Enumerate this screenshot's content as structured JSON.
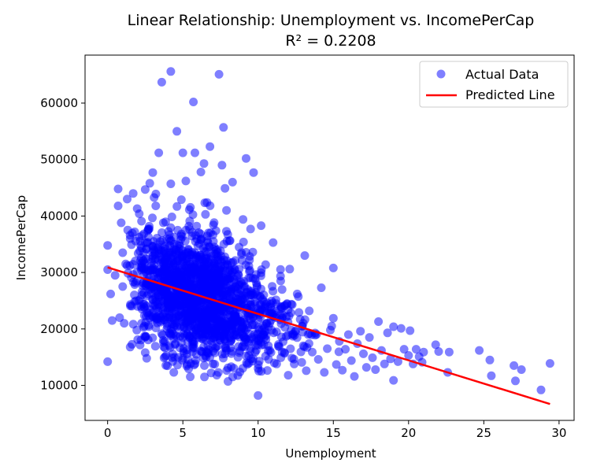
{
  "chart_data": {
    "type": "scatter",
    "title": "Linear Relationship: Unemployment vs. IncomePerCap",
    "subtitle": "R² = 0.2208",
    "xlabel": "Unemployment",
    "ylabel": "IncomePerCap",
    "xlim": [
      -1.5,
      31.0
    ],
    "ylim": [
      3800,
      68500
    ],
    "xticks": [
      0,
      5,
      10,
      15,
      20,
      25,
      30
    ],
    "yticks": [
      10000,
      20000,
      30000,
      40000,
      50000,
      60000
    ],
    "xtick_labels": [
      "0",
      "5",
      "10",
      "15",
      "20",
      "25",
      "30"
    ],
    "ytick_labels": [
      "10000",
      "20000",
      "30000",
      "40000",
      "50000",
      "60000"
    ],
    "grid": false,
    "legend_position": "top-right",
    "series": [
      {
        "name": "Actual Data",
        "kind": "scatter",
        "color": "#0000ff",
        "alpha": 0.5,
        "points": [
          [
            0.0,
            34800
          ],
          [
            0.0,
            30500
          ],
          [
            0.0,
            14200
          ],
          [
            0.2,
            26200
          ],
          [
            0.3,
            21500
          ],
          [
            0.5,
            29500
          ],
          [
            0.7,
            44800
          ],
          [
            0.7,
            41800
          ],
          [
            0.8,
            22000
          ],
          [
            0.9,
            38800
          ],
          [
            1.0,
            33500
          ],
          [
            1.0,
            27500
          ],
          [
            1.1,
            21000
          ],
          [
            1.2,
            31500
          ],
          [
            1.3,
            43000
          ],
          [
            1.5,
            16800
          ],
          [
            1.5,
            36000
          ],
          [
            1.7,
            44000
          ],
          [
            1.8,
            37200
          ],
          [
            1.9,
            25000
          ],
          [
            2.0,
            18100
          ],
          [
            2.1,
            40400
          ],
          [
            2.2,
            34800
          ],
          [
            2.4,
            30600
          ],
          [
            2.5,
            44700
          ],
          [
            2.5,
            15800
          ],
          [
            2.6,
            14800
          ],
          [
            2.7,
            37700
          ],
          [
            2.8,
            45800
          ],
          [
            3.0,
            22900
          ],
          [
            3.0,
            47700
          ],
          [
            3.2,
            41800
          ],
          [
            3.4,
            51200
          ],
          [
            3.5,
            28000
          ],
          [
            3.6,
            63700
          ],
          [
            3.7,
            38800
          ],
          [
            3.8,
            17800
          ],
          [
            3.9,
            15300
          ],
          [
            4.0,
            24400
          ],
          [
            4.1,
            36000
          ],
          [
            4.2,
            65600
          ],
          [
            4.2,
            45700
          ],
          [
            4.3,
            14900
          ],
          [
            4.4,
            12300
          ],
          [
            4.5,
            33500
          ],
          [
            4.6,
            55000
          ],
          [
            4.7,
            28800
          ],
          [
            4.8,
            20300
          ],
          [
            4.9,
            42900
          ],
          [
            5.0,
            51200
          ],
          [
            5.0,
            14800
          ],
          [
            5.2,
            46200
          ],
          [
            5.3,
            19000
          ],
          [
            5.4,
            38200
          ],
          [
            5.6,
            33600
          ],
          [
            5.7,
            60200
          ],
          [
            5.8,
            51200
          ],
          [
            5.9,
            15500
          ],
          [
            6.0,
            27400
          ],
          [
            6.2,
            47800
          ],
          [
            6.3,
            20800
          ],
          [
            6.4,
            49300
          ],
          [
            6.6,
            42400
          ],
          [
            6.8,
            52300
          ],
          [
            6.9,
            18400
          ],
          [
            7.0,
            13800
          ],
          [
            7.1,
            31100
          ],
          [
            7.2,
            37400
          ],
          [
            7.3,
            23800
          ],
          [
            7.4,
            65100
          ],
          [
            7.5,
            28200
          ],
          [
            7.6,
            49000
          ],
          [
            7.7,
            55700
          ],
          [
            7.8,
            44900
          ],
          [
            7.9,
            41000
          ],
          [
            8.0,
            10700
          ],
          [
            8.0,
            13100
          ],
          [
            8.0,
            21000
          ],
          [
            8.1,
            35600
          ],
          [
            8.2,
            26700
          ],
          [
            8.3,
            46000
          ],
          [
            8.5,
            28200
          ],
          [
            8.6,
            18900
          ],
          [
            8.7,
            16900
          ],
          [
            8.9,
            33500
          ],
          [
            9.0,
            39400
          ],
          [
            9.2,
            50200
          ],
          [
            9.3,
            27000
          ],
          [
            9.5,
            37700
          ],
          [
            9.5,
            16600
          ],
          [
            9.7,
            47700
          ],
          [
            9.8,
            28900
          ],
          [
            10.0,
            8200
          ],
          [
            10.0,
            13000
          ],
          [
            10.1,
            22500
          ],
          [
            10.2,
            38300
          ],
          [
            10.3,
            25200
          ],
          [
            10.5,
            31400
          ],
          [
            10.7,
            14600
          ],
          [
            10.9,
            19800
          ],
          [
            11.0,
            35300
          ],
          [
            11.2,
            22000
          ],
          [
            11.4,
            16900
          ],
          [
            11.5,
            28500
          ],
          [
            11.6,
            15900
          ],
          [
            11.8,
            24200
          ],
          [
            12.0,
            11800
          ],
          [
            12.1,
            30600
          ],
          [
            12.2,
            19800
          ],
          [
            12.4,
            13800
          ],
          [
            12.6,
            26200
          ],
          [
            12.8,
            21700
          ],
          [
            13.0,
            17000
          ],
          [
            13.1,
            33000
          ],
          [
            13.2,
            12600
          ],
          [
            13.4,
            23200
          ],
          [
            13.6,
            15900
          ],
          [
            13.8,
            18900
          ],
          [
            14.0,
            14600
          ],
          [
            14.2,
            27300
          ],
          [
            14.4,
            12300
          ],
          [
            14.6,
            16500
          ],
          [
            14.8,
            19800
          ],
          [
            15.0,
            30800
          ],
          [
            15.0,
            21900
          ],
          [
            15.2,
            13700
          ],
          [
            15.4,
            17800
          ],
          [
            15.6,
            12700
          ],
          [
            15.8,
            16400
          ],
          [
            16.0,
            19000
          ],
          [
            16.2,
            14400
          ],
          [
            16.4,
            11600
          ],
          [
            16.6,
            17400
          ],
          [
            16.8,
            19600
          ],
          [
            17.0,
            15600
          ],
          [
            17.2,
            13200
          ],
          [
            17.4,
            18500
          ],
          [
            17.6,
            14900
          ],
          [
            17.8,
            12800
          ],
          [
            18.0,
            21300
          ],
          [
            18.2,
            16200
          ],
          [
            18.4,
            13800
          ],
          [
            18.6,
            19300
          ],
          [
            18.8,
            14700
          ],
          [
            19.0,
            10900
          ],
          [
            19.0,
            20400
          ],
          [
            19.3,
            14200
          ],
          [
            19.5,
            20100
          ],
          [
            19.7,
            16400
          ],
          [
            20.0,
            15300
          ],
          [
            20.1,
            19700
          ],
          [
            20.3,
            13800
          ],
          [
            20.5,
            16400
          ],
          [
            20.7,
            15100
          ],
          [
            20.9,
            14100
          ],
          [
            21.0,
            15900
          ],
          [
            21.8,
            17200
          ],
          [
            22.0,
            16000
          ],
          [
            22.6,
            12300
          ],
          [
            22.7,
            15900
          ],
          [
            24.7,
            16200
          ],
          [
            25.4,
            14500
          ],
          [
            25.5,
            11700
          ],
          [
            27.0,
            13500
          ],
          [
            27.1,
            10800
          ],
          [
            27.5,
            12800
          ],
          [
            28.8,
            9200
          ],
          [
            29.4,
            13900
          ]
        ],
        "dense_region": {
          "x_range": [
            1.0,
            12.0
          ],
          "y_center": 26000,
          "y_spread": 5500,
          "count": 1700
        }
      },
      {
        "name": "Predicted Line",
        "kind": "line",
        "color": "#ff0000",
        "x": [
          0.0,
          29.4
        ],
        "y": [
          30900,
          6700
        ]
      }
    ]
  }
}
